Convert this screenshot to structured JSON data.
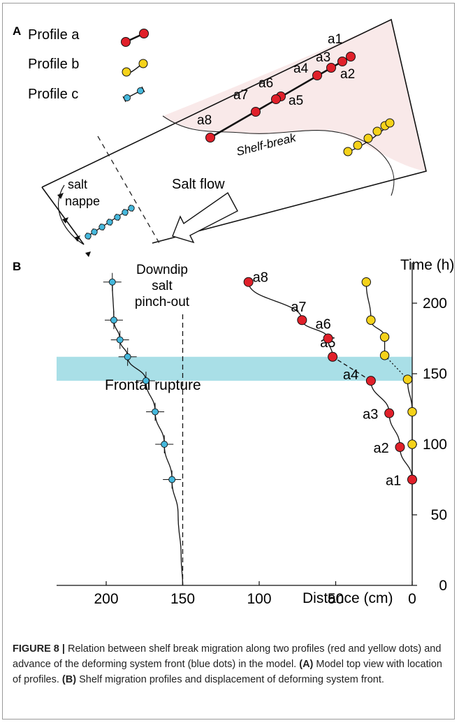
{
  "panel_a": {
    "label": "A",
    "legend": [
      {
        "label": "Profile a",
        "color": "#e0202a"
      },
      {
        "label": "Profile b",
        "color": "#f5d21a"
      },
      {
        "label": "Profile c",
        "color": "#45b8dc"
      }
    ],
    "point_labels": [
      "a1",
      "a2",
      "a3",
      "a4",
      "a5",
      "a6",
      "a7",
      "a8"
    ],
    "shelf_break": "Shelf-break",
    "salt_flow": "Salt flow",
    "salt_nappe_1": "salt",
    "salt_nappe_2": "nappe"
  },
  "panel_b": {
    "label": "B",
    "pinch_out": [
      "Downdip",
      "salt",
      "pinch-out"
    ],
    "frontal_rupture": "Frontal rupture",
    "rupture_band": [
      145,
      162
    ],
    "pinch_out_x": 150
  },
  "chart_data": {
    "type": "scatter",
    "xlabel": "Distance (cm)",
    "ylabel": "Time (h)",
    "xlim": [
      210,
      0
    ],
    "ylim": [
      0,
      220
    ],
    "xticks": [
      200,
      150,
      100,
      50,
      0
    ],
    "yticks": [
      0,
      50,
      100,
      150,
      200
    ],
    "series": [
      {
        "color": "#e0202a",
        "labels": [
          "a1",
          "a2",
          "a3",
          "a4",
          "a5",
          "a6",
          "a7",
          "a8"
        ],
        "points": [
          [
            0,
            75
          ],
          [
            8,
            98
          ],
          [
            15,
            122
          ],
          [
            27,
            145
          ],
          [
            52,
            162
          ],
          [
            55,
            175
          ],
          [
            72,
            188
          ],
          [
            107,
            215
          ]
        ]
      },
      {
        "color": "#f5d21a",
        "points": [
          [
            0,
            75
          ],
          [
            0,
            100
          ],
          [
            0,
            123
          ],
          [
            3,
            146
          ],
          [
            18,
            163
          ],
          [
            18,
            176
          ],
          [
            27,
            188
          ],
          [
            30,
            215
          ]
        ]
      },
      {
        "color": "#45b8dc",
        "points": [
          [
            157,
            75
          ],
          [
            162,
            100
          ],
          [
            168,
            123
          ],
          [
            174,
            145
          ],
          [
            186,
            162
          ],
          [
            191,
            174
          ],
          [
            195,
            188
          ],
          [
            196,
            215
          ]
        ]
      }
    ]
  },
  "caption": {
    "figure_label": "FIGURE 8 |",
    "text_1": " Relation between shelf break migration along two profiles (red and yellow dots) and advance of the deforming system front (blue dots) in the model. ",
    "a_label": "(A)",
    "text_2": " Model top view with location of profiles. ",
    "b_label": "(B)",
    "text_3": " Shelf migration profiles and displacement of deforming system front."
  }
}
